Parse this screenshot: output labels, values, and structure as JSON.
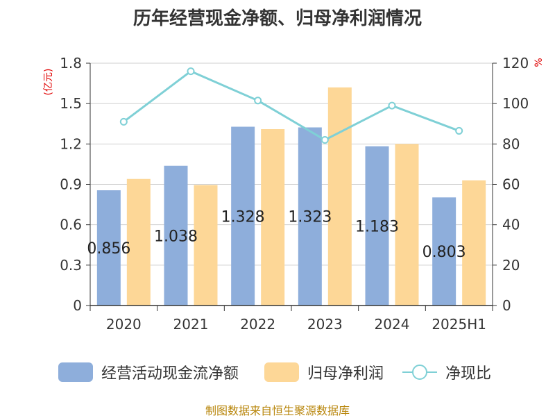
{
  "title": "历年经营现金净额、归母净利润情况",
  "left_unit": "(亿元)",
  "right_unit": "%",
  "source": "制图数据来自恒生聚源数据库",
  "colors": {
    "cashflow": "#8eaedb",
    "netprofit": "#fdd797",
    "ratio": "#7fd0d6"
  },
  "legend": [
    {
      "label": "经营活动现金流净额",
      "icon": "bar-swatch-blue"
    },
    {
      "label": "归母净利润",
      "icon": "bar-swatch-orange"
    },
    {
      "label": "净现比",
      "icon": "line-circle-marker"
    }
  ],
  "chart_data": {
    "type": "bar",
    "title": "历年经营现金净额、归母净利润情况",
    "categories": [
      "2020",
      "2021",
      "2022",
      "2023",
      "2024",
      "2025H1"
    ],
    "series": [
      {
        "name": "经营活动现金流净额",
        "type": "bar",
        "axis": "left",
        "values": [
          0.856,
          1.038,
          1.328,
          1.323,
          1.183,
          0.803
        ],
        "labels": [
          "0.856",
          "1.038",
          "1.328",
          "1.323",
          "1.183",
          "0.803"
        ]
      },
      {
        "name": "归母净利润",
        "type": "bar",
        "axis": "left",
        "values": [
          0.94,
          0.895,
          1.31,
          1.62,
          1.2,
          0.93
        ]
      },
      {
        "name": "净现比",
        "type": "line",
        "axis": "right",
        "values": [
          91,
          116,
          101.5,
          82,
          99,
          86.5
        ]
      }
    ],
    "y_left": {
      "label": "(亿元)",
      "range": [
        0,
        1.8
      ],
      "ticks": [
        "0",
        "0.3",
        "0.6",
        "0.9",
        "1.2",
        "1.5",
        "1.8"
      ]
    },
    "y_right": {
      "label": "%",
      "range": [
        0,
        120
      ],
      "ticks": [
        "0",
        "20",
        "40",
        "60",
        "80",
        "100",
        "120"
      ]
    },
    "grid": true,
    "legend_position": "bottom"
  }
}
